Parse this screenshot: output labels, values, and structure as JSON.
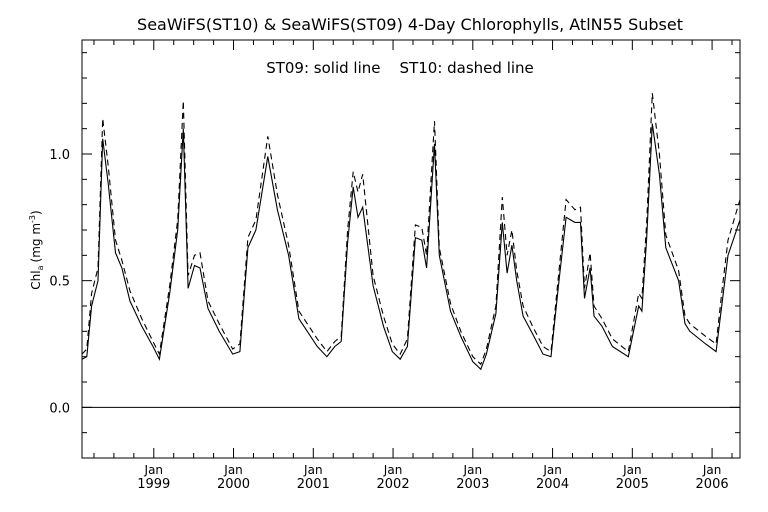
{
  "chart_data": {
    "type": "line",
    "title": "SeaWiFS(ST10) & SeaWiFS(ST09) 4-Day Chlorophylls, AtlN55 Subset",
    "annotation": "ST09: solid line    ST10: dashed line",
    "ylabel_main": "Chl",
    "ylabel_sub": "a",
    "ylabel_units_pre": "(mg m",
    "ylabel_units_sup": "-3",
    "ylabel_units_post": ")",
    "ylim": [
      -0.2,
      1.45
    ],
    "yticks": [
      0.0,
      0.5,
      1.0
    ],
    "ytick_labels": [
      "0.0",
      "0.5",
      "1.0"
    ],
    "xlim": [
      1998.1,
      2006.35
    ],
    "x_month_label": "Jan",
    "x_year_labels": [
      "1999",
      "2000",
      "2001",
      "2002",
      "2003",
      "2004",
      "2005",
      "2006"
    ],
    "x_year_positions": [
      1999,
      2000,
      2001,
      2002,
      2003,
      2004,
      2005,
      2006
    ],
    "zero_line": 0.0,
    "series": [
      {
        "name": "ST09",
        "style": "solid",
        "x": [
          1998.1,
          1998.16,
          1998.22,
          1998.3,
          1998.36,
          1998.43,
          1998.52,
          1998.6,
          1998.7,
          1998.85,
          1998.99,
          1999.07,
          1999.2,
          1999.3,
          1999.37,
          1999.43,
          1999.51,
          1999.58,
          1999.68,
          1999.82,
          1999.99,
          2000.08,
          2000.18,
          2000.28,
          2000.43,
          2000.55,
          2000.69,
          2000.82,
          2001.05,
          2001.17,
          2001.27,
          2001.35,
          2001.43,
          2001.5,
          2001.56,
          2001.62,
          2001.75,
          2001.88,
          2001.99,
          2002.09,
          2002.18,
          2002.28,
          2002.36,
          2002.42,
          2002.52,
          2002.58,
          2002.72,
          2002.85,
          2003.0,
          2003.1,
          2003.17,
          2003.29,
          2003.37,
          2003.43,
          2003.49,
          2003.55,
          2003.63,
          2003.75,
          2003.88,
          2003.98,
          2004.08,
          2004.17,
          2004.28,
          2004.35,
          2004.4,
          2004.47,
          2004.52,
          2004.62,
          2004.75,
          2004.95,
          2005.08,
          2005.12,
          2005.18,
          2005.25,
          2005.34,
          2005.42,
          2005.58,
          2005.66,
          2005.72,
          2005.92,
          2006.05,
          2006.12,
          2006.2,
          2006.35
        ],
        "y": [
          0.19,
          0.2,
          0.4,
          0.5,
          1.06,
          0.88,
          0.61,
          0.55,
          0.42,
          0.32,
          0.24,
          0.19,
          0.45,
          0.7,
          1.1,
          0.47,
          0.56,
          0.55,
          0.39,
          0.3,
          0.21,
          0.22,
          0.63,
          0.7,
          0.99,
          0.78,
          0.6,
          0.35,
          0.24,
          0.2,
          0.24,
          0.26,
          0.65,
          0.87,
          0.75,
          0.79,
          0.48,
          0.32,
          0.22,
          0.19,
          0.24,
          0.67,
          0.66,
          0.55,
          1.04,
          0.6,
          0.38,
          0.28,
          0.18,
          0.15,
          0.21,
          0.37,
          0.73,
          0.53,
          0.64,
          0.5,
          0.36,
          0.29,
          0.21,
          0.2,
          0.5,
          0.75,
          0.73,
          0.73,
          0.43,
          0.55,
          0.36,
          0.32,
          0.24,
          0.2,
          0.4,
          0.38,
          0.67,
          1.12,
          0.92,
          0.63,
          0.5,
          0.33,
          0.3,
          0.25,
          0.22,
          0.4,
          0.6,
          0.74
        ]
      },
      {
        "name": "ST10",
        "style": "dashed",
        "x": [
          1998.1,
          1998.16,
          1998.22,
          1998.3,
          1998.36,
          1998.43,
          1998.52,
          1998.6,
          1998.7,
          1998.85,
          1998.99,
          1999.07,
          1999.2,
          1999.3,
          1999.37,
          1999.43,
          1999.51,
          1999.58,
          1999.68,
          1999.82,
          1999.99,
          2000.08,
          2000.18,
          2000.28,
          2000.43,
          2000.55,
          2000.69,
          2000.82,
          2001.05,
          2001.17,
          2001.27,
          2001.35,
          2001.43,
          2001.5,
          2001.56,
          2001.62,
          2001.75,
          2001.88,
          2001.99,
          2002.09,
          2002.18,
          2002.28,
          2002.36,
          2002.42,
          2002.52,
          2002.58,
          2002.72,
          2002.85,
          2003.0,
          2003.1,
          2003.17,
          2003.29,
          2003.37,
          2003.43,
          2003.49,
          2003.55,
          2003.63,
          2003.75,
          2003.88,
          2003.98,
          2004.08,
          2004.17,
          2004.28,
          2004.35,
          2004.4,
          2004.47,
          2004.52,
          2004.62,
          2004.75,
          2004.95,
          2005.08,
          2005.12,
          2005.18,
          2005.25,
          2005.34,
          2005.42,
          2005.58,
          2005.66,
          2005.72,
          2005.92,
          2006.05,
          2006.12,
          2006.2,
          2006.35
        ],
        "y": [
          0.21,
          0.23,
          0.45,
          0.55,
          1.14,
          0.95,
          0.66,
          0.58,
          0.46,
          0.35,
          0.26,
          0.21,
          0.48,
          0.74,
          1.21,
          0.52,
          0.6,
          0.61,
          0.42,
          0.33,
          0.23,
          0.25,
          0.67,
          0.74,
          1.07,
          0.84,
          0.64,
          0.38,
          0.27,
          0.22,
          0.26,
          0.28,
          0.7,
          0.93,
          0.85,
          0.92,
          0.52,
          0.36,
          0.25,
          0.21,
          0.27,
          0.72,
          0.71,
          0.6,
          1.13,
          0.63,
          0.41,
          0.3,
          0.2,
          0.17,
          0.23,
          0.4,
          0.83,
          0.6,
          0.7,
          0.54,
          0.4,
          0.32,
          0.24,
          0.22,
          0.54,
          0.82,
          0.78,
          0.79,
          0.47,
          0.61,
          0.4,
          0.35,
          0.27,
          0.22,
          0.45,
          0.43,
          0.73,
          1.24,
          1.0,
          0.68,
          0.54,
          0.36,
          0.33,
          0.28,
          0.25,
          0.45,
          0.66,
          0.82
        ]
      }
    ]
  }
}
